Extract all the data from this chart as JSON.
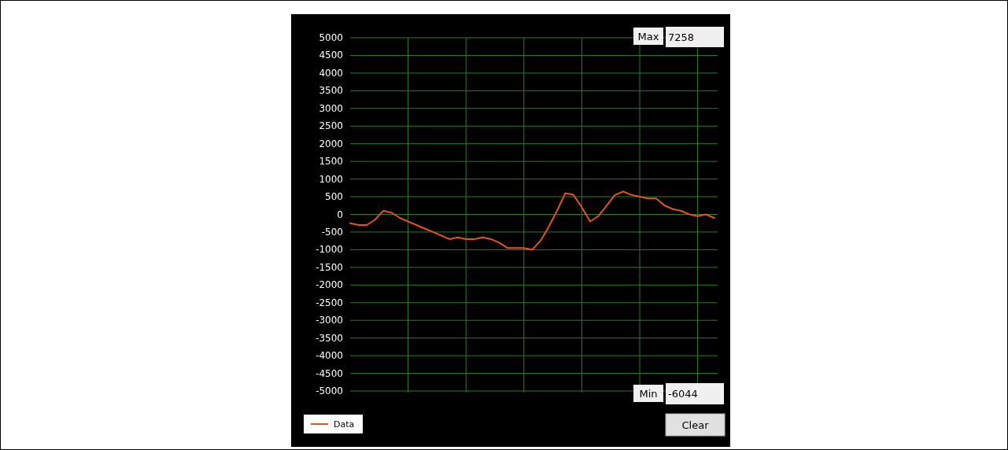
{
  "chart_data": {
    "type": "line",
    "categories": [
      null,
      null,
      null,
      null,
      null,
      null,
      null,
      null,
      null,
      null,
      null,
      null,
      null,
      null,
      null,
      null,
      null,
      null,
      null,
      null,
      null,
      null,
      null,
      null,
      null,
      null,
      null,
      null,
      null,
      null,
      null,
      null,
      null,
      null,
      null,
      null,
      null,
      null,
      null,
      null,
      null,
      null,
      null,
      null,
      null
    ],
    "series": [
      {
        "name": "Data",
        "color": "#e0561c",
        "values": [
          -250,
          -300,
          -300,
          -150,
          100,
          50,
          -100,
          -200,
          -300,
          -400,
          -500,
          -600,
          -700,
          -650,
          -700,
          -700,
          -650,
          -700,
          -800,
          -950,
          -950,
          -950,
          -1000,
          -750,
          -350,
          100,
          600,
          550,
          200,
          -200,
          -50,
          250,
          550,
          650,
          550,
          500,
          450,
          450,
          250,
          150,
          100,
          0,
          -50,
          0,
          -100
        ]
      }
    ],
    "ylim": [
      -5000,
      5000
    ],
    "yticks": [
      -5000,
      -4500,
      -4000,
      -3500,
      -3000,
      -2500,
      -2000,
      -1500,
      -1000,
      -500,
      0,
      500,
      1000,
      1500,
      2000,
      2500,
      3000,
      3500,
      4000,
      4500,
      5000
    ],
    "tick_labels": "y",
    "grid": true,
    "legend": "bottom left",
    "marker": "none",
    "line_style": "solid",
    "annotations": [
      "Max",
      "7258",
      "Min",
      "-6044",
      "Clear"
    ]
  }
}
